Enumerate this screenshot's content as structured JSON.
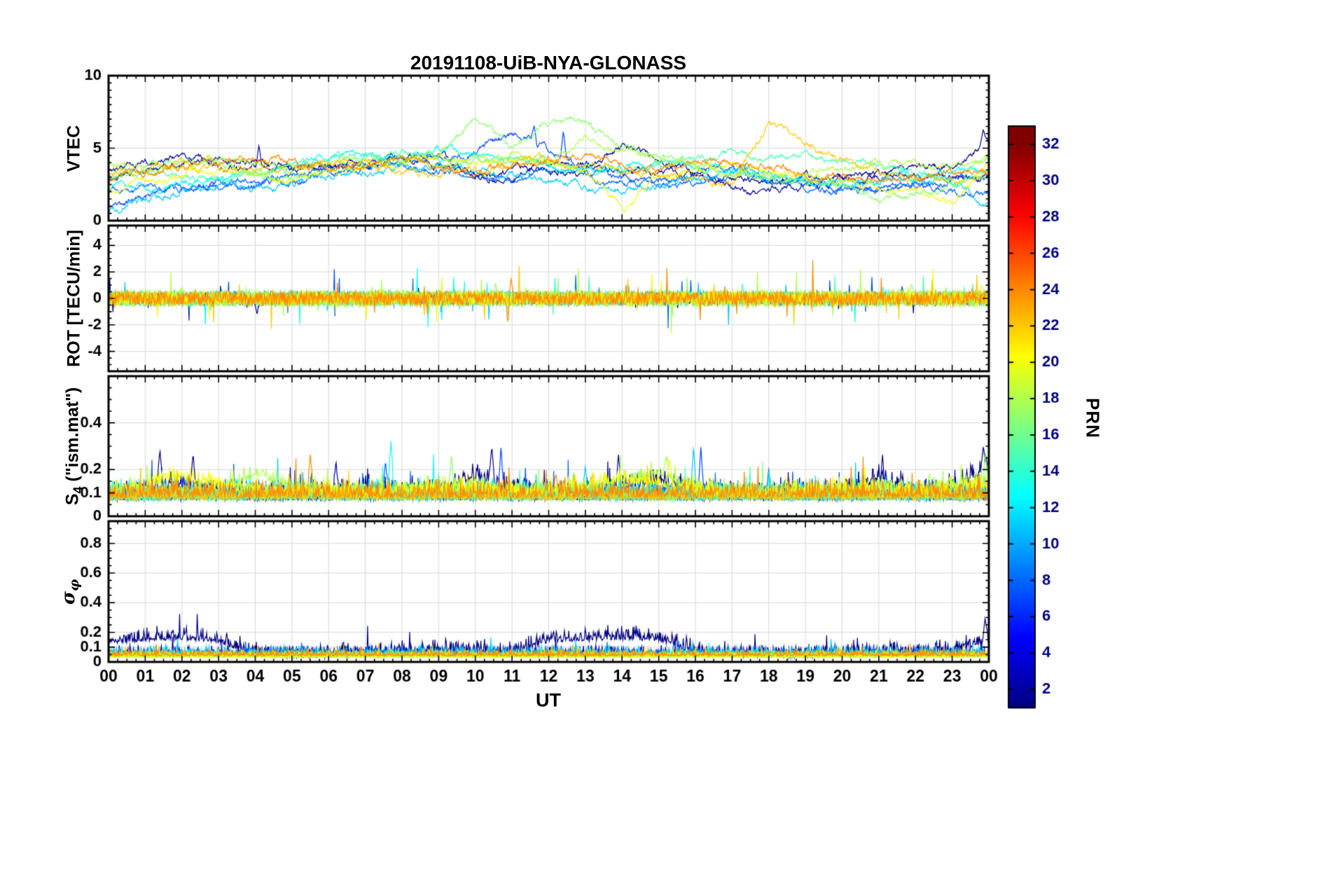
{
  "title": "20191108-UiB-NYA-GLONASS",
  "chart_data": {
    "type": "line",
    "title": "20191108-UiB-NYA-GLONASS",
    "xlabel": "UT",
    "grid": true,
    "legend_position": "none",
    "x": {
      "min": 0,
      "max": 24,
      "major": 1,
      "minor": 0.25,
      "tick_labels": [
        "00",
        "01",
        "02",
        "03",
        "04",
        "05",
        "06",
        "07",
        "08",
        "09",
        "10",
        "11",
        "12",
        "13",
        "14",
        "15",
        "16",
        "17",
        "18",
        "19",
        "20",
        "21",
        "22",
        "23",
        "00"
      ]
    },
    "colorbar": {
      "label": "PRN",
      "colormap": "jet",
      "vmin": 1,
      "vmax": 33,
      "ticks": [
        2,
        4,
        6,
        8,
        10,
        12,
        14,
        16,
        18,
        20,
        22,
        24,
        26,
        28,
        30,
        32
      ]
    },
    "panels": [
      {
        "id": "vtec",
        "ylabel": "VTEC",
        "ylim": [
          0,
          10
        ],
        "clamp": [
          0.15,
          9.7
        ],
        "yticks": [
          0,
          5,
          10
        ],
        "yminor": 0.5,
        "series": [
          {
            "prn": 1,
            "noise": 0.12,
            "base": [
              3.0,
              3.3,
              4.0,
              4.2,
              3.8,
              3.6,
              3.7,
              4.0,
              4.3,
              4.1,
              3.2,
              3.4,
              3.6,
              3.4,
              5.2,
              4.3,
              3.2,
              3.0,
              2.6,
              2.9,
              3.1,
              3.3,
              3.5,
              3.7,
              5.2
            ],
            "spikes": [
              [
                23.85,
                6.3
              ]
            ]
          },
          {
            "prn": 2,
            "noise": 0.12,
            "base": [
              3.4,
              4.1,
              4.4,
              3.9,
              3.7,
              3.5,
              3.8,
              4.1,
              4.4,
              4.6,
              3.0,
              2.8,
              3.9,
              3.7,
              3.5,
              3.3,
              3.1,
              2.2,
              2.1,
              2.4,
              2.7,
              3.0,
              3.2,
              2.9,
              3.0
            ],
            "spikes": [
              [
                4.1,
                5.2
              ]
            ]
          },
          {
            "prn": 7,
            "noise": 0.12,
            "base": [
              1.0,
              1.6,
              2.2,
              2.6,
              2.4,
              2.9,
              3.3,
              3.8,
              4.0,
              4.3,
              4.6,
              6.0,
              5.0,
              3.5,
              3.0,
              2.7,
              3.4,
              3.8,
              3.0,
              2.6,
              2.4,
              2.2,
              2.5,
              2.8,
              3.0
            ],
            "spikes": [
              [
                11.6,
                6.6
              ],
              [
                12.4,
                6.2
              ]
            ]
          },
          {
            "prn": 8,
            "noise": 0.12,
            "base": [
              2.0,
              2.3,
              2.1,
              2.5,
              2.8,
              3.2,
              3.6,
              3.9,
              3.7,
              3.4,
              3.1,
              2.9,
              3.4,
              3.2,
              2.6,
              2.4,
              2.8,
              3.2,
              2.7,
              2.3,
              2.0,
              2.4,
              2.7,
              2.0,
              1.5
            ]
          },
          {
            "prn": 11,
            "noise": 0.12,
            "base": [
              0.8,
              1.4,
              2.0,
              2.4,
              2.2,
              2.6,
              3.0,
              3.4,
              3.6,
              3.8,
              3.4,
              3.0,
              2.8,
              2.4,
              2.0,
              2.5,
              3.0,
              3.6,
              3.3,
              2.9,
              2.6,
              2.8,
              3.0,
              2.6,
              1.4
            ]
          },
          {
            "prn": 13,
            "noise": 0.12,
            "base": [
              2.6,
              2.2,
              2.6,
              3.0,
              3.4,
              3.8,
              4.2,
              4.6,
              4.4,
              5.0,
              4.5,
              4.0,
              3.6,
              3.2,
              3.8,
              4.2,
              3.9,
              3.4,
              3.0,
              2.7,
              2.5,
              2.8,
              3.1,
              3.4,
              3.6
            ]
          },
          {
            "prn": 15,
            "noise": 0.12,
            "base": [
              3.0,
              3.4,
              3.0,
              2.7,
              3.2,
              3.6,
              4.0,
              4.4,
              4.7,
              4.3,
              3.9,
              4.4,
              4.0,
              3.6,
              3.3,
              3.7,
              4.1,
              4.6,
              4.3,
              4.6,
              4.2,
              3.8,
              3.3,
              2.9,
              3.2
            ]
          },
          {
            "prn": 17,
            "noise": 0.12,
            "base": [
              3.2,
              3.6,
              4.0,
              3.7,
              3.3,
              3.0,
              3.4,
              3.8,
              4.2,
              4.6,
              7.2,
              5.0,
              6.8,
              6.9,
              5.2,
              4.4,
              3.8,
              3.3,
              2.9,
              2.6,
              2.4,
              1.6,
              1.8,
              2.6,
              4.2
            ]
          },
          {
            "prn": 18,
            "noise": 0.12,
            "base": [
              4.0,
              3.6,
              3.9,
              4.3,
              4.0,
              3.7,
              4.1,
              4.4,
              4.1,
              3.8,
              4.4,
              4.6,
              4.2,
              5.8,
              4.6,
              4.1,
              3.7,
              3.4,
              3.0,
              3.3,
              3.6,
              3.9,
              3.5,
              3.8,
              4.1
            ]
          },
          {
            "prn": 20,
            "noise": 0.12,
            "base": [
              2.2,
              2.7,
              3.1,
              3.5,
              3.2,
              2.9,
              3.3,
              3.7,
              4.1,
              4.4,
              4.0,
              4.4,
              3.9,
              3.5,
              0.9,
              3.0,
              3.4,
              3.8,
              3.4,
              3.0,
              2.7,
              2.4,
              2.1,
              1.2,
              3.9
            ]
          },
          {
            "prn": 22,
            "noise": 0.12,
            "base": [
              3.1,
              3.5,
              3.9,
              3.6,
              3.3,
              3.7,
              4.1,
              3.8,
              3.4,
              3.1,
              3.5,
              3.9,
              4.3,
              3.9,
              3.5,
              3.2,
              2.8,
              2.4,
              6.8,
              5.2,
              4.2,
              3.4,
              3.0,
              2.7,
              3.4
            ]
          },
          {
            "prn": 24,
            "noise": 0.12,
            "base": [
              2.8,
              3.2,
              3.6,
              4.0,
              4.3,
              4.0,
              3.6,
              3.9,
              4.2,
              3.8,
              3.4,
              3.7,
              4.0,
              4.3,
              3.9,
              3.5,
              3.8,
              4.1,
              3.7,
              3.3,
              2.9,
              2.6,
              2.9,
              3.2,
              3.5
            ]
          }
        ]
      },
      {
        "id": "rot",
        "ylabel": "ROT [TECU/min]",
        "ylim": [
          -5.5,
          5.5
        ],
        "clamp": [
          -5.2,
          5.2
        ],
        "yticks": [
          -4,
          -2,
          0,
          2,
          4
        ],
        "yminor": 0.5,
        "series": [
          {
            "prn": 1,
            "noise": 0.2,
            "base": 0,
            "spikes": [
              [
                4.05,
                -1.2
              ]
            ]
          },
          {
            "prn": 2,
            "noise": 0.2,
            "base": 0
          },
          {
            "prn": 7,
            "noise": 0.22,
            "base": 0
          },
          {
            "prn": 8,
            "noise": 0.22,
            "base": 0
          },
          {
            "prn": 11,
            "noise": 0.25,
            "base": 0
          },
          {
            "prn": 13,
            "noise": 0.25,
            "base": 0
          },
          {
            "prn": 15,
            "noise": 0.28,
            "base": 0
          },
          {
            "prn": 17,
            "noise": 0.3,
            "base": 0,
            "spikes": [
              [
                10.55,
                1.2
              ],
              [
                21.9,
                1.1
              ]
            ]
          },
          {
            "prn": 18,
            "noise": 0.3,
            "base": 0,
            "spikes": [
              [
                2.0,
                0.9
              ]
            ]
          },
          {
            "prn": 20,
            "noise": 0.28,
            "base": 0,
            "spikes": [
              [
                23.8,
                1.0
              ]
            ]
          },
          {
            "prn": 22,
            "noise": 0.26,
            "base": 0
          },
          {
            "prn": 24,
            "noise": 0.26,
            "base": 0,
            "spikes": [
              [
                10.9,
                -2.1
              ],
              [
                10.97,
                1.5
              ]
            ]
          }
        ]
      },
      {
        "id": "s4",
        "ylabel": "S4 (\"ism.mat\")",
        "label_main": "S",
        "label_sub": "4",
        "label_rest": " (\"ism.mat\")",
        "ylim": [
          0,
          0.6
        ],
        "clamp": [
          0.01,
          0.57
        ],
        "yticks": [
          0,
          0.1,
          0.2,
          0.4
        ],
        "yminor": 0.05,
        "series": [
          {
            "prn": 1,
            "noise": 0.04,
            "base": [
              0.07,
              0.1,
              0.12,
              0.09,
              0.07,
              0.07,
              0.08,
              0.09,
              0.1,
              0.09,
              0.16,
              0.1,
              0.08,
              0.09,
              0.11,
              0.14,
              0.09,
              0.08,
              0.07,
              0.08,
              0.09,
              0.15,
              0.09,
              0.1,
              0.2
            ],
            "spikes": [
              [
                1.4,
                0.29
              ],
              [
                2.3,
                0.26
              ],
              [
                10.45,
                0.3
              ],
              [
                23.85,
                0.3
              ]
            ]
          },
          {
            "prn": 2,
            "noise": 0.035,
            "base": 0.07,
            "spikes": [
              [
                6.2,
                0.24
              ],
              [
                13.9,
                0.27
              ],
              [
                21.1,
                0.27
              ]
            ]
          },
          {
            "prn": 7,
            "noise": 0.04,
            "base": 0.08,
            "spikes": [
              [
                10.7,
                0.3
              ],
              [
                16.15,
                0.3
              ]
            ]
          },
          {
            "prn": 8,
            "noise": 0.035,
            "base": 0.07,
            "spikes": [
              [
                7.55,
                0.24
              ],
              [
                18.0,
                0.2
              ]
            ]
          },
          {
            "prn": 11,
            "noise": 0.04,
            "base": 0.07,
            "spikes": [
              [
                13.0,
                0.22
              ],
              [
                15.95,
                0.3
              ]
            ]
          },
          {
            "prn": 13,
            "noise": 0.04,
            "base": 0.08,
            "spikes": [
              [
                7.7,
                0.33
              ],
              [
                14.5,
                0.2
              ]
            ]
          },
          {
            "prn": 15,
            "noise": 0.035,
            "base": 0.07,
            "spikes": [
              [
                9.0,
                0.18
              ],
              [
                17.0,
                0.15
              ]
            ]
          },
          {
            "prn": 17,
            "noise": 0.04,
            "base": 0.07,
            "spikes": [
              [
                9.35,
                0.27
              ],
              [
                23.9,
                0.28
              ]
            ]
          },
          {
            "prn": 18,
            "noise": 0.035,
            "base": [
              0.08,
              0.09,
              0.1,
              0.09,
              0.17,
              0.12,
              0.09,
              0.08,
              0.09,
              0.1,
              0.11,
              0.1,
              0.09,
              0.1,
              0.12,
              0.18,
              0.1,
              0.09,
              0.08,
              0.09,
              0.1,
              0.11,
              0.1,
              0.12,
              0.14
            ],
            "spikes": [
              [
                4.2,
                0.2
              ],
              [
                15.2,
                0.26
              ]
            ]
          },
          {
            "prn": 20,
            "noise": 0.035,
            "base": [
              0.09,
              0.12,
              0.16,
              0.12,
              0.1,
              0.09,
              0.1,
              0.09,
              0.1,
              0.11,
              0.1,
              0.09,
              0.1,
              0.12,
              0.15,
              0.13,
              0.1,
              0.09,
              0.09,
              0.1,
              0.11,
              0.1,
              0.09,
              0.1,
              0.12
            ],
            "spikes": [
              [
                15.3,
                0.25
              ]
            ]
          },
          {
            "prn": 22,
            "noise": 0.035,
            "base": 0.07,
            "spikes": [
              [
                13.2,
                0.18
              ],
              [
                19.6,
                0.16
              ]
            ]
          },
          {
            "prn": 24,
            "noise": 0.04,
            "base": 0.08,
            "spikes": [
              [
                5.5,
                0.27
              ],
              [
                12.2,
                0.18
              ],
              [
                22.3,
                0.14
              ]
            ]
          }
        ]
      },
      {
        "id": "sigma_phi",
        "ylabel": "σ_φ",
        "label_main": "σ",
        "label_sub": "φ",
        "ylim": [
          0,
          0.95
        ],
        "clamp": [
          0.004,
          0.92
        ],
        "yticks": [
          0,
          0.1,
          0.2,
          0.4,
          0.6,
          0.8
        ],
        "yminor": 0.05,
        "series": [
          {
            "prn": 1,
            "noise": 0.05,
            "base": [
              0.12,
              0.14,
              0.15,
              0.13,
              0.04,
              0.03,
              0.03,
              0.04,
              0.05,
              0.06,
              0.06,
              0.05,
              0.13,
              0.14,
              0.15,
              0.14,
              0.05,
              0.04,
              0.03,
              0.03,
              0.04,
              0.05,
              0.05,
              0.06,
              0.12
            ],
            "spikes": [
              [
                23.9,
                0.3
              ]
            ]
          },
          {
            "prn": 2,
            "noise": 0.03,
            "base": 0.05
          },
          {
            "prn": 7,
            "noise": 0.025,
            "base": 0.04
          },
          {
            "prn": 8,
            "noise": 0.025,
            "base": 0.04
          },
          {
            "prn": 11,
            "noise": 0.03,
            "base": 0.05
          },
          {
            "prn": 13,
            "noise": 0.02,
            "base": 0.04
          },
          {
            "prn": 15,
            "noise": 0.02,
            "base": 0.035
          },
          {
            "prn": 17,
            "noise": 0.02,
            "base": 0.035
          },
          {
            "prn": 18,
            "noise": 0.018,
            "base": 0.03
          },
          {
            "prn": 20,
            "noise": 0.018,
            "base": 0.03
          },
          {
            "prn": 22,
            "noise": 0.02,
            "base": 0.045
          },
          {
            "prn": 24,
            "noise": 0.02,
            "base": 0.04
          }
        ]
      }
    ]
  }
}
